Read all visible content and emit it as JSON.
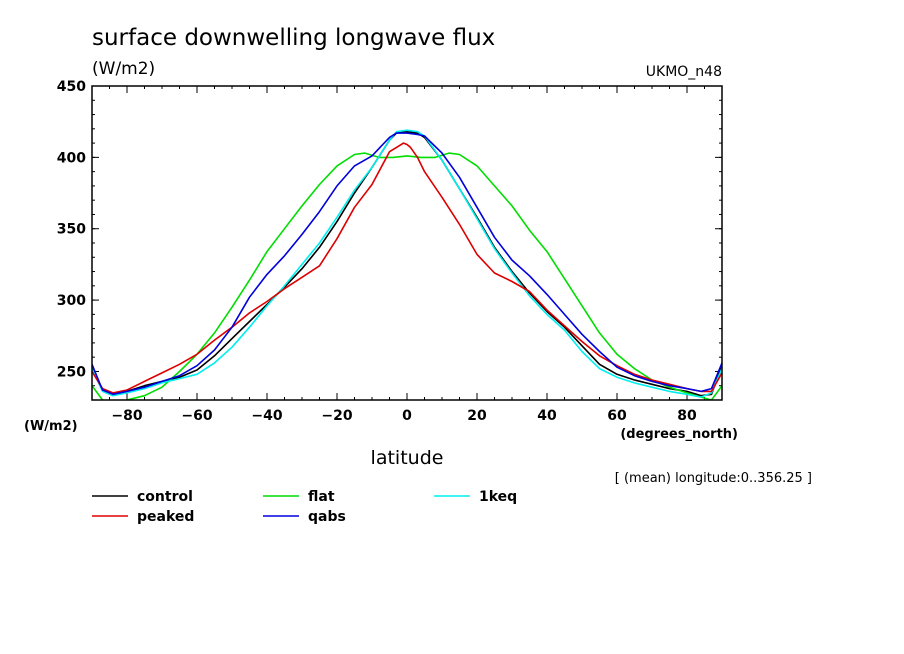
{
  "chart_data": {
    "type": "line",
    "title": "surface downwelling longwave flux",
    "units_label": "(W/m2)",
    "model_label": "UKMO_n48",
    "ylabel_side": "(W/m2)",
    "xunits_label": "(degrees_north)",
    "xlabel": "latitude",
    "note": "[ (mean) longitude:0..356.25 ]",
    "xlim": [
      -90,
      90
    ],
    "ylim": [
      230,
      450
    ],
    "x_ticks": [
      -80,
      -60,
      -40,
      -20,
      0,
      20,
      40,
      60,
      80
    ],
    "y_ticks": [
      250,
      300,
      350,
      400,
      450
    ],
    "grid": false,
    "legend_position": "bottom-left",
    "series": [
      {
        "name": "control",
        "color": "#000000",
        "x": [
          -90,
          -87,
          -84,
          -80,
          -75,
          -70,
          -65,
          -60,
          -55,
          -50,
          -45,
          -40,
          -35,
          -30,
          -25,
          -20,
          -15,
          -10,
          -5,
          -3,
          0,
          3,
          5,
          10,
          15,
          20,
          25,
          30,
          35,
          40,
          45,
          50,
          55,
          60,
          65,
          70,
          75,
          80,
          84,
          87,
          90
        ],
        "y": [
          253,
          237,
          234,
          236,
          240,
          243,
          246,
          251,
          261,
          273,
          285,
          297,
          309,
          322,
          337,
          355,
          375,
          393,
          412,
          417,
          418,
          417,
          414,
          398,
          378,
          358,
          337,
          320,
          305,
          292,
          281,
          268,
          255,
          248,
          244,
          241,
          238,
          236,
          233,
          234,
          254
        ]
      },
      {
        "name": "flat",
        "color": "#00dd00",
        "x": [
          -90,
          -87,
          -84,
          -80,
          -75,
          -70,
          -65,
          -60,
          -55,
          -50,
          -45,
          -40,
          -35,
          -30,
          -25,
          -20,
          -15,
          -12,
          -8,
          -4,
          0,
          4,
          8,
          12,
          15,
          20,
          25,
          30,
          35,
          40,
          45,
          50,
          55,
          60,
          65,
          70,
          75,
          80,
          84,
          87,
          90
        ],
        "y": [
          240,
          230,
          229,
          230,
          233,
          239,
          250,
          262,
          277,
          295,
          314,
          334,
          350,
          366,
          381,
          394,
          402,
          403,
          400,
          400,
          401,
          400,
          400,
          403,
          402,
          394,
          380,
          366,
          349,
          334,
          315,
          296,
          277,
          262,
          252,
          244,
          239,
          235,
          232,
          230,
          240
        ]
      },
      {
        "name": "1keq",
        "color": "#00eeee",
        "x": [
          -90,
          -87,
          -84,
          -80,
          -75,
          -70,
          -65,
          -60,
          -55,
          -50,
          -45,
          -40,
          -35,
          -30,
          -25,
          -20,
          -15,
          -10,
          -5,
          -3,
          0,
          3,
          5,
          10,
          15,
          20,
          25,
          30,
          35,
          40,
          45,
          50,
          55,
          60,
          65,
          70,
          75,
          80,
          84,
          87,
          90
        ],
        "y": [
          252,
          236,
          233,
          235,
          238,
          242,
          245,
          248,
          256,
          267,
          281,
          296,
          310,
          325,
          340,
          358,
          377,
          393,
          412,
          418,
          419,
          418,
          415,
          398,
          378,
          357,
          336,
          319,
          303,
          290,
          279,
          264,
          252,
          246,
          242,
          239,
          236,
          234,
          232,
          235,
          252
        ]
      },
      {
        "name": "peaked",
        "color": "#dd0000",
        "x": [
          -90,
          -87,
          -84,
          -80,
          -75,
          -70,
          -65,
          -60,
          -55,
          -50,
          -45,
          -40,
          -35,
          -30,
          -25,
          -20,
          -15,
          -10,
          -5,
          -3,
          -1,
          0,
          1,
          3,
          5,
          10,
          15,
          20,
          25,
          30,
          35,
          40,
          45,
          50,
          55,
          60,
          65,
          70,
          75,
          80,
          84,
          87,
          90
        ],
        "y": [
          250,
          238,
          235,
          237,
          243,
          249,
          255,
          262,
          272,
          281,
          291,
          299,
          308,
          316,
          324,
          343,
          365,
          381,
          404,
          407,
          410,
          409,
          407,
          400,
          390,
          372,
          353,
          332,
          319,
          313,
          306,
          293,
          282,
          271,
          261,
          254,
          248,
          244,
          241,
          238,
          236,
          236,
          249
        ]
      },
      {
        "name": "qabs",
        "color": "#0000dd",
        "x": [
          -90,
          -87,
          -84,
          -80,
          -75,
          -70,
          -65,
          -60,
          -55,
          -50,
          -45,
          -40,
          -35,
          -30,
          -25,
          -20,
          -15,
          -10,
          -5,
          -3,
          0,
          3,
          5,
          10,
          15,
          20,
          25,
          30,
          35,
          40,
          45,
          50,
          55,
          60,
          65,
          70,
          75,
          80,
          84,
          87,
          90
        ],
        "y": [
          255,
          237,
          234,
          236,
          239,
          243,
          247,
          254,
          265,
          281,
          302,
          318,
          331,
          346,
          362,
          380,
          394,
          401,
          414,
          417,
          417,
          416,
          415,
          403,
          386,
          365,
          344,
          328,
          317,
          304,
          290,
          276,
          264,
          253,
          247,
          243,
          240,
          238,
          236,
          238,
          256
        ]
      }
    ]
  },
  "legend": [
    {
      "name": "control",
      "color": "#000000",
      "col": 0,
      "row": 0
    },
    {
      "name": "peaked",
      "color": "#dd0000",
      "col": 0,
      "row": 1
    },
    {
      "name": "flat",
      "color": "#00dd00",
      "col": 1,
      "row": 0
    },
    {
      "name": "qabs",
      "color": "#0000dd",
      "col": 1,
      "row": 1
    },
    {
      "name": "1keq",
      "color": "#00eeee",
      "col": 2,
      "row": 0
    }
  ]
}
